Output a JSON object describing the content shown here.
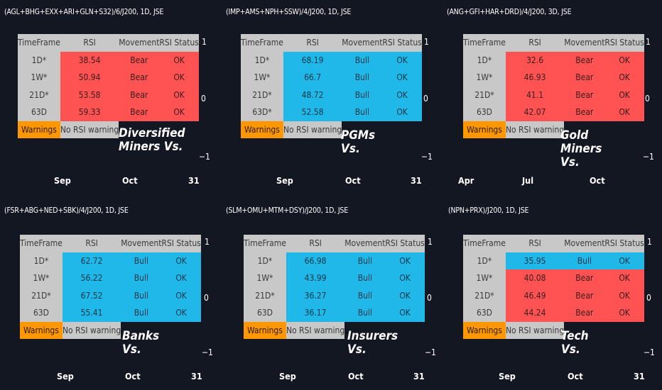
{
  "headers": [
    "TimeFrame",
    "RSI",
    "Movement",
    "RSI Status"
  ],
  "warnings_label": "Warnings",
  "no_warning_label": "No RSI warning",
  "colors": {
    "background": "#131722",
    "bear": "#ff5252",
    "bull": "#20b7e9",
    "warnings": "#ff9800",
    "neutral": "#c8c8c8"
  },
  "panels": [
    {
      "title": "(AGL+BHG+EXX+ARI+GLN+S32)/6/J200, 1D, JSE",
      "caption_lines": [
        "Diversified",
        "Miners Vs."
      ],
      "y_ticks": [
        "1",
        "0",
        "−1"
      ],
      "x_ticks": [
        "Sep",
        "Oct",
        "31"
      ],
      "rows": [
        {
          "tf": "1D*",
          "rsi": "38.54",
          "movement": "Bear",
          "status": "OK"
        },
        {
          "tf": "1W*",
          "rsi": "50.94",
          "movement": "Bear",
          "status": "OK"
        },
        {
          "tf": "21D*",
          "rsi": "53.58",
          "movement": "Bear",
          "status": "OK"
        },
        {
          "tf": "63D",
          "rsi": "59.33",
          "movement": "Bear",
          "status": "OK"
        }
      ]
    },
    {
      "title": "(IMP+AMS+NPH+SSW)/4/J200, 1D, JSE",
      "caption_lines": [
        "PGMs Vs."
      ],
      "y_ticks": [
        "1",
        "0",
        "−1"
      ],
      "x_ticks": [
        "Sep",
        "Oct",
        "31"
      ],
      "rows": [
        {
          "tf": "1D*",
          "rsi": "68.19",
          "movement": "Bull",
          "status": "OK"
        },
        {
          "tf": "1W*",
          "rsi": "66.7",
          "movement": "Bull",
          "status": "OK"
        },
        {
          "tf": "21D*",
          "rsi": "48.72",
          "movement": "Bull",
          "status": "OK"
        },
        {
          "tf": "63D*",
          "rsi": "52.58",
          "movement": "Bull",
          "status": "OK"
        }
      ]
    },
    {
      "title": "(ANG+GFI+HAR+DRD)/4/J200, 3D, JSE",
      "caption_lines": [
        "Gold Miners Vs."
      ],
      "y_ticks": [
        "1",
        "0",
        "−1"
      ],
      "x_ticks": [
        "Apr",
        "Jul",
        "Oct"
      ],
      "rows": [
        {
          "tf": "1D*",
          "rsi": "32.6",
          "movement": "Bear",
          "status": "OK"
        },
        {
          "tf": "1W*",
          "rsi": "46.93",
          "movement": "Bear",
          "status": "OK"
        },
        {
          "tf": "21D*",
          "rsi": "41.1",
          "movement": "Bear",
          "status": "OK"
        },
        {
          "tf": "63D",
          "rsi": "42.07",
          "movement": "Bear",
          "status": "OK"
        }
      ]
    },
    {
      "title": "(FSR+ABG+NED+SBK)/4/J200, 1D, JSE",
      "caption_lines": [
        "Banks Vs."
      ],
      "y_ticks": [
        "1",
        "0",
        "−1"
      ],
      "x_ticks": [
        "Sep",
        "Oct",
        "31"
      ],
      "rows": [
        {
          "tf": "1D*",
          "rsi": "62.72",
          "movement": "Bull",
          "status": "OK"
        },
        {
          "tf": "1W*",
          "rsi": "56.22",
          "movement": "Bull",
          "status": "OK"
        },
        {
          "tf": "21D*",
          "rsi": "67.52",
          "movement": "Bull",
          "status": "OK"
        },
        {
          "tf": "63D",
          "rsi": "55.41",
          "movement": "Bull",
          "status": "OK"
        }
      ]
    },
    {
      "title": "(SLM+OMU+MTM+DSY)/J200, 1D, JSE",
      "caption_lines": [
        "Insurers Vs."
      ],
      "y_ticks": [
        "1",
        "0",
        "−1"
      ],
      "x_ticks": [
        "Sep",
        "Oct",
        "31"
      ],
      "rows": [
        {
          "tf": "1D*",
          "rsi": "66.98",
          "movement": "Bull",
          "status": "OK"
        },
        {
          "tf": "1W*",
          "rsi": "43.99",
          "movement": "Bull",
          "status": "OK"
        },
        {
          "tf": "21D*",
          "rsi": "36.27",
          "movement": "Bull",
          "status": "OK"
        },
        {
          "tf": "63D",
          "rsi": "36.17",
          "movement": "Bull",
          "status": "OK"
        }
      ]
    },
    {
      "title": "(NPN+PRX)/J200, 1D, JSE",
      "caption_lines": [
        "Tech Vs."
      ],
      "y_ticks": [
        "1",
        "0",
        "−1"
      ],
      "x_ticks": [
        "Sep",
        "Oct",
        "31"
      ],
      "rows": [
        {
          "tf": "1D*",
          "rsi": "35.95",
          "movement": "Bull",
          "status": "OK"
        },
        {
          "tf": "1W*",
          "rsi": "40.08",
          "movement": "Bear",
          "status": "OK"
        },
        {
          "tf": "21D*",
          "rsi": "46.49",
          "movement": "Bear",
          "status": "OK"
        },
        {
          "tf": "63D",
          "rsi": "44.24",
          "movement": "Bear",
          "status": "OK"
        }
      ]
    }
  ]
}
